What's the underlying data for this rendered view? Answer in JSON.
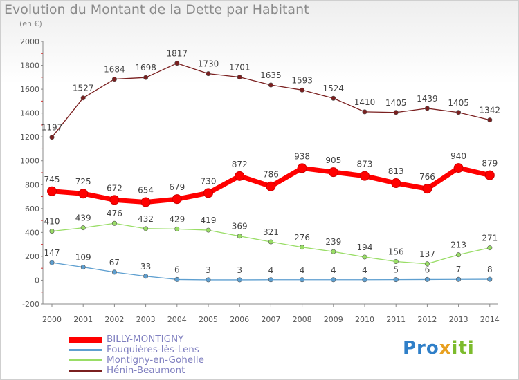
{
  "chart_data": {
    "type": "line",
    "title": "Evolution du Montant de la Dette par Habitant",
    "subtitle": "(en €)",
    "x": [
      "2000",
      "2001",
      "2002",
      "2003",
      "2004",
      "2005",
      "2006",
      "2007",
      "2008",
      "2009",
      "2010",
      "2011",
      "2012",
      "2013",
      "2014"
    ],
    "ylim": [
      -200,
      2000
    ],
    "yticks": [
      -200,
      0,
      200,
      400,
      600,
      800,
      1000,
      1200,
      1400,
      1600,
      1800,
      2000
    ],
    "grid": false,
    "legend_position": "bottom-left",
    "series": [
      {
        "name": "BILLY-MONTIGNY",
        "color": "#ff0000",
        "emphasized": true,
        "values": [
          745,
          725,
          672,
          654,
          679,
          730,
          872,
          786,
          938,
          905,
          873,
          813,
          766,
          940,
          879
        ]
      },
      {
        "name": "Fouquières-lès-Lens",
        "color": "#5e9fd0",
        "emphasized": false,
        "values": [
          147,
          109,
          67,
          33,
          6,
          3,
          3,
          4,
          4,
          4,
          4,
          5,
          6,
          7,
          8
        ]
      },
      {
        "name": "Montigny-en-Gohelle",
        "color": "#99dd66",
        "emphasized": false,
        "values": [
          410,
          439,
          476,
          432,
          429,
          419,
          369,
          321,
          276,
          239,
          194,
          156,
          137,
          213,
          271
        ]
      },
      {
        "name": "Hénin-Beaumont",
        "color": "#7a1f1f",
        "emphasized": false,
        "values": [
          1197,
          1527,
          1684,
          1698,
          1817,
          1730,
          1701,
          1635,
          1593,
          1524,
          1410,
          1405,
          1439,
          1405,
          1342
        ]
      }
    ]
  },
  "logo": {
    "p1": "Pro",
    "p2": "x",
    "p3": "iti"
  }
}
